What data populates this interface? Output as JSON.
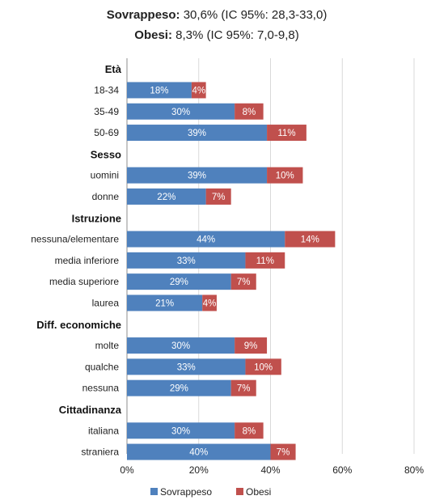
{
  "title": {
    "line1_label": "Sovrappeso:",
    "line1_value": " 30,6% (IC 95%: 28,3-33,0)",
    "line2_label": "Obesi:",
    "line2_value": " 8,3% (IC 95%: 7,0-9,8)"
  },
  "chart_data": {
    "type": "bar",
    "orientation": "horizontal",
    "stacked": true,
    "xlim": [
      0,
      80
    ],
    "xticks": [
      "0%",
      "20%",
      "40%",
      "60%",
      "80%"
    ],
    "xtick_values": [
      0,
      20,
      40,
      60,
      80
    ],
    "grid": true,
    "legend_position": "bottom",
    "series_names": [
      "Sovrappeso",
      "Obesi"
    ],
    "colors": {
      "Sovrappeso": "#4f81bd",
      "Obesi": "#c0504d"
    },
    "groups": [
      {
        "name": "Età",
        "items": [
          {
            "label": "18-34",
            "sovrappeso": 18,
            "obesi": 4
          },
          {
            "label": "35-49",
            "sovrappeso": 30,
            "obesi": 8
          },
          {
            "label": "50-69",
            "sovrappeso": 39,
            "obesi": 11
          }
        ]
      },
      {
        "name": "Sesso",
        "items": [
          {
            "label": "uomini",
            "sovrappeso": 39,
            "obesi": 10
          },
          {
            "label": "donne",
            "sovrappeso": 22,
            "obesi": 7
          }
        ]
      },
      {
        "name": "Istruzione",
        "items": [
          {
            "label": "nessuna/elementare",
            "sovrappeso": 44,
            "obesi": 14
          },
          {
            "label": "media inferiore",
            "sovrappeso": 33,
            "obesi": 11
          },
          {
            "label": "media superiore",
            "sovrappeso": 29,
            "obesi": 7
          },
          {
            "label": "laurea",
            "sovrappeso": 21,
            "obesi": 4
          }
        ]
      },
      {
        "name": "Diff. economiche",
        "items": [
          {
            "label": "molte",
            "sovrappeso": 30,
            "obesi": 9
          },
          {
            "label": "qualche",
            "sovrappeso": 33,
            "obesi": 10
          },
          {
            "label": "nessuna",
            "sovrappeso": 29,
            "obesi": 7
          }
        ]
      },
      {
        "name": "Cittadinanza",
        "items": [
          {
            "label": "italiana",
            "sovrappeso": 30,
            "obesi": 8
          },
          {
            "label": "straniera",
            "sovrappeso": 40,
            "obesi": 7
          }
        ]
      }
    ]
  }
}
